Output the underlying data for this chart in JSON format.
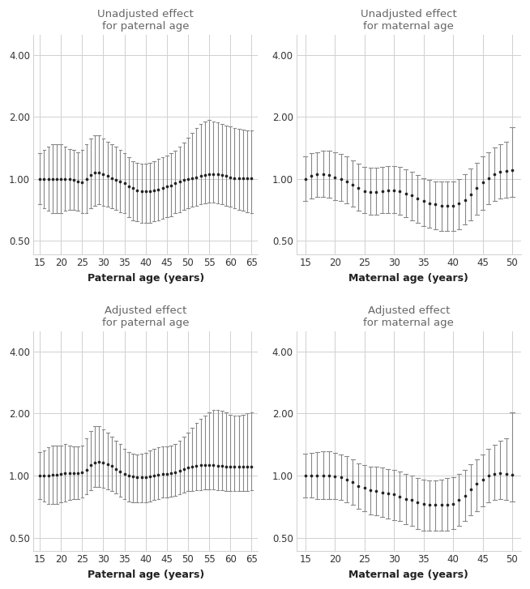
{
  "background_color": "#ffffff",
  "plot_bg": "#f0f0f0",
  "titles": [
    "Unadjusted effect\nfor paternal age",
    "Unadjusted effect\nfor maternal age",
    "Adjusted effect\nfor paternal age",
    "Adjusted effect\nfor maternal age"
  ],
  "xlabels": [
    "Paternal age (years)",
    "Maternal age (years)",
    "Paternal age (years)",
    "Maternal age (years)"
  ],
  "paternal_ages": [
    15,
    16,
    17,
    18,
    19,
    20,
    21,
    22,
    23,
    24,
    25,
    26,
    27,
    28,
    29,
    30,
    31,
    32,
    33,
    34,
    35,
    36,
    37,
    38,
    39,
    40,
    41,
    42,
    43,
    44,
    45,
    46,
    47,
    48,
    49,
    50,
    51,
    52,
    53,
    54,
    55,
    56,
    57,
    58,
    59,
    60,
    61,
    62,
    63,
    64,
    65
  ],
  "maternal_ages": [
    15,
    16,
    17,
    18,
    19,
    20,
    21,
    22,
    23,
    24,
    25,
    26,
    27,
    28,
    29,
    30,
    31,
    32,
    33,
    34,
    35,
    36,
    37,
    38,
    39,
    40,
    41,
    42,
    43,
    44,
    45,
    46,
    47,
    48,
    49,
    50
  ],
  "unadj_pat_or": [
    1.0,
    1.0,
    1.0,
    1.0,
    1.0,
    1.0,
    1.0,
    1.0,
    0.99,
    0.97,
    0.96,
    1.0,
    1.04,
    1.07,
    1.07,
    1.05,
    1.03,
    1.01,
    0.99,
    0.97,
    0.95,
    0.92,
    0.9,
    0.88,
    0.87,
    0.87,
    0.87,
    0.88,
    0.89,
    0.9,
    0.92,
    0.93,
    0.95,
    0.97,
    0.99,
    1.0,
    1.01,
    1.02,
    1.03,
    1.04,
    1.05,
    1.05,
    1.05,
    1.04,
    1.03,
    1.02,
    1.01,
    1.01,
    1.01,
    1.01,
    1.01
  ],
  "unadj_pat_lo": [
    0.75,
    0.72,
    0.7,
    0.68,
    0.68,
    0.68,
    0.7,
    0.71,
    0.71,
    0.7,
    0.68,
    0.68,
    0.72,
    0.74,
    0.75,
    0.74,
    0.73,
    0.72,
    0.71,
    0.69,
    0.68,
    0.65,
    0.63,
    0.62,
    0.61,
    0.61,
    0.61,
    0.62,
    0.63,
    0.64,
    0.65,
    0.66,
    0.68,
    0.69,
    0.71,
    0.72,
    0.73,
    0.74,
    0.75,
    0.76,
    0.77,
    0.77,
    0.76,
    0.75,
    0.74,
    0.73,
    0.72,
    0.71,
    0.7,
    0.69,
    0.68
  ],
  "unadj_pat_hi": [
    1.33,
    1.38,
    1.43,
    1.47,
    1.47,
    1.47,
    1.43,
    1.4,
    1.38,
    1.35,
    1.38,
    1.47,
    1.57,
    1.63,
    1.63,
    1.57,
    1.52,
    1.47,
    1.43,
    1.38,
    1.33,
    1.27,
    1.22,
    1.2,
    1.19,
    1.19,
    1.2,
    1.22,
    1.25,
    1.27,
    1.3,
    1.33,
    1.37,
    1.43,
    1.5,
    1.58,
    1.67,
    1.77,
    1.85,
    1.9,
    1.93,
    1.9,
    1.88,
    1.85,
    1.82,
    1.8,
    1.77,
    1.75,
    1.73,
    1.72,
    1.72
  ],
  "unadj_mat_or": [
    1.0,
    1.03,
    1.05,
    1.05,
    1.04,
    1.02,
    1.0,
    0.97,
    0.94,
    0.9,
    0.87,
    0.86,
    0.86,
    0.87,
    0.88,
    0.88,
    0.87,
    0.85,
    0.83,
    0.8,
    0.78,
    0.76,
    0.75,
    0.74,
    0.74,
    0.74,
    0.76,
    0.79,
    0.84,
    0.9,
    0.96,
    1.01,
    1.05,
    1.08,
    1.09,
    1.1
  ],
  "unadj_mat_lo": [
    0.78,
    0.8,
    0.82,
    0.82,
    0.81,
    0.79,
    0.78,
    0.76,
    0.73,
    0.7,
    0.68,
    0.67,
    0.67,
    0.68,
    0.68,
    0.68,
    0.67,
    0.65,
    0.63,
    0.61,
    0.59,
    0.58,
    0.57,
    0.56,
    0.56,
    0.56,
    0.57,
    0.6,
    0.63,
    0.67,
    0.71,
    0.75,
    0.78,
    0.8,
    0.81,
    0.82
  ],
  "unadj_mat_hi": [
    1.28,
    1.33,
    1.35,
    1.37,
    1.37,
    1.35,
    1.32,
    1.28,
    1.23,
    1.18,
    1.14,
    1.13,
    1.13,
    1.14,
    1.15,
    1.15,
    1.14,
    1.11,
    1.08,
    1.04,
    1.01,
    0.99,
    0.97,
    0.97,
    0.97,
    0.97,
    1.0,
    1.05,
    1.12,
    1.2,
    1.28,
    1.35,
    1.42,
    1.47,
    1.52,
    1.78
  ],
  "adj_pat_or": [
    1.0,
    1.0,
    1.0,
    1.01,
    1.01,
    1.02,
    1.03,
    1.03,
    1.03,
    1.03,
    1.04,
    1.07,
    1.12,
    1.16,
    1.17,
    1.16,
    1.14,
    1.11,
    1.08,
    1.05,
    1.02,
    1.0,
    0.99,
    0.98,
    0.98,
    0.98,
    0.99,
    1.0,
    1.01,
    1.02,
    1.02,
    1.03,
    1.04,
    1.06,
    1.08,
    1.09,
    1.1,
    1.11,
    1.12,
    1.12,
    1.12,
    1.12,
    1.11,
    1.11,
    1.1,
    1.1,
    1.1,
    1.1,
    1.1,
    1.1,
    1.1
  ],
  "adj_pat_lo": [
    0.77,
    0.75,
    0.73,
    0.73,
    0.73,
    0.74,
    0.75,
    0.76,
    0.77,
    0.77,
    0.78,
    0.81,
    0.85,
    0.88,
    0.88,
    0.87,
    0.86,
    0.84,
    0.82,
    0.79,
    0.77,
    0.75,
    0.74,
    0.74,
    0.74,
    0.74,
    0.75,
    0.76,
    0.77,
    0.78,
    0.78,
    0.79,
    0.8,
    0.81,
    0.83,
    0.84,
    0.84,
    0.85,
    0.85,
    0.86,
    0.86,
    0.86,
    0.85,
    0.85,
    0.84,
    0.84,
    0.84,
    0.84,
    0.84,
    0.84,
    0.85
  ],
  "adj_pat_hi": [
    1.3,
    1.33,
    1.37,
    1.4,
    1.4,
    1.4,
    1.42,
    1.4,
    1.38,
    1.38,
    1.4,
    1.52,
    1.65,
    1.73,
    1.73,
    1.68,
    1.62,
    1.55,
    1.48,
    1.42,
    1.35,
    1.3,
    1.28,
    1.27,
    1.28,
    1.29,
    1.32,
    1.35,
    1.37,
    1.38,
    1.38,
    1.4,
    1.43,
    1.48,
    1.55,
    1.62,
    1.7,
    1.8,
    1.88,
    1.95,
    2.03,
    2.08,
    2.08,
    2.06,
    2.02,
    1.98,
    1.96,
    1.95,
    1.97,
    2.0,
    2.02
  ],
  "adj_mat_or": [
    1.0,
    1.0,
    1.0,
    1.0,
    1.0,
    0.99,
    0.98,
    0.96,
    0.93,
    0.89,
    0.87,
    0.85,
    0.84,
    0.83,
    0.82,
    0.81,
    0.79,
    0.77,
    0.76,
    0.74,
    0.73,
    0.72,
    0.72,
    0.72,
    0.72,
    0.73,
    0.76,
    0.8,
    0.86,
    0.91,
    0.96,
    1.0,
    1.02,
    1.03,
    1.02,
    1.01
  ],
  "adj_mat_lo": [
    0.78,
    0.78,
    0.77,
    0.77,
    0.77,
    0.77,
    0.76,
    0.74,
    0.72,
    0.69,
    0.67,
    0.65,
    0.64,
    0.63,
    0.62,
    0.61,
    0.6,
    0.58,
    0.57,
    0.55,
    0.54,
    0.54,
    0.54,
    0.54,
    0.54,
    0.55,
    0.57,
    0.6,
    0.64,
    0.67,
    0.71,
    0.74,
    0.76,
    0.77,
    0.76,
    0.75
  ],
  "adj_mat_hi": [
    1.28,
    1.29,
    1.3,
    1.31,
    1.31,
    1.29,
    1.27,
    1.24,
    1.2,
    1.15,
    1.12,
    1.1,
    1.1,
    1.09,
    1.08,
    1.07,
    1.05,
    1.02,
    1.0,
    0.97,
    0.96,
    0.95,
    0.95,
    0.96,
    0.97,
    0.98,
    1.02,
    1.07,
    1.14,
    1.2,
    1.27,
    1.35,
    1.41,
    1.47,
    1.52,
    2.02
  ],
  "yticks": [
    0.5,
    1.0,
    2.0,
    4.0
  ],
  "pat_xticks": [
    15,
    20,
    25,
    30,
    35,
    40,
    45,
    50,
    55,
    60,
    65
  ],
  "mat_xticks": [
    15,
    20,
    25,
    30,
    35,
    40,
    45,
    50
  ],
  "grid_color": "#d0d0d0",
  "line_color": "#888888",
  "dot_color": "#222222",
  "title_color": "#666666",
  "tick_color": "#333333"
}
